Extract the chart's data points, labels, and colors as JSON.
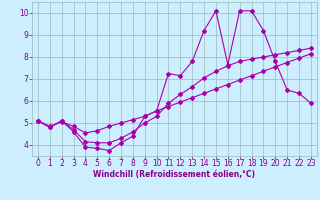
{
  "xlabel": "Windchill (Refroidissement éolien,°C)",
  "background_color": "#cceeff",
  "line_color": "#aa00aa",
  "xlim": [
    -0.5,
    23.5
  ],
  "ylim": [
    3.5,
    10.5
  ],
  "xticks": [
    0,
    1,
    2,
    3,
    4,
    5,
    6,
    7,
    8,
    9,
    10,
    11,
    12,
    13,
    14,
    15,
    16,
    17,
    18,
    19,
    20,
    21,
    22,
    23
  ],
  "yticks": [
    4,
    5,
    6,
    7,
    8,
    9,
    10
  ],
  "line1_x": [
    0,
    1,
    2,
    3,
    4,
    5,
    6,
    7,
    8,
    9,
    10,
    11,
    12,
    13,
    14,
    15,
    16,
    17,
    18,
    19,
    20,
    21,
    22,
    23
  ],
  "line1_y": [
    5.1,
    4.8,
    5.1,
    4.6,
    3.9,
    3.85,
    3.75,
    4.1,
    4.4,
    5.3,
    5.55,
    7.25,
    7.15,
    7.8,
    9.2,
    10.1,
    7.65,
    10.1,
    10.1,
    9.2,
    7.8,
    6.5,
    6.35,
    5.9
  ],
  "line2_x": [
    0,
    1,
    2,
    3,
    4,
    5,
    6,
    7,
    8,
    9,
    10,
    11,
    12,
    13,
    14,
    15,
    16,
    17,
    18,
    19,
    20,
    21,
    22,
    23
  ],
  "line2_y": [
    5.1,
    4.85,
    5.05,
    4.85,
    4.55,
    4.65,
    4.85,
    5.0,
    5.15,
    5.3,
    5.55,
    5.75,
    5.95,
    6.15,
    6.35,
    6.55,
    6.75,
    6.95,
    7.15,
    7.35,
    7.55,
    7.75,
    7.95,
    8.15
  ],
  "line3_x": [
    0,
    1,
    2,
    3,
    4,
    5,
    6,
    7,
    8,
    9,
    10,
    11,
    12,
    13,
    14,
    15,
    16,
    17,
    18,
    19,
    20,
    21,
    22,
    23
  ],
  "line3_y": [
    5.1,
    4.8,
    5.1,
    4.7,
    4.15,
    4.1,
    4.1,
    4.3,
    4.6,
    5.0,
    5.3,
    5.9,
    6.3,
    6.65,
    7.05,
    7.35,
    7.6,
    7.8,
    7.9,
    8.0,
    8.1,
    8.2,
    8.3,
    8.4
  ],
  "grid_color": "#99bbbb",
  "font_color": "#880088",
  "tick_fontsize": 5.5,
  "xlabel_fontsize": 5.5,
  "marker_size": 2.0,
  "linewidth": 0.8
}
